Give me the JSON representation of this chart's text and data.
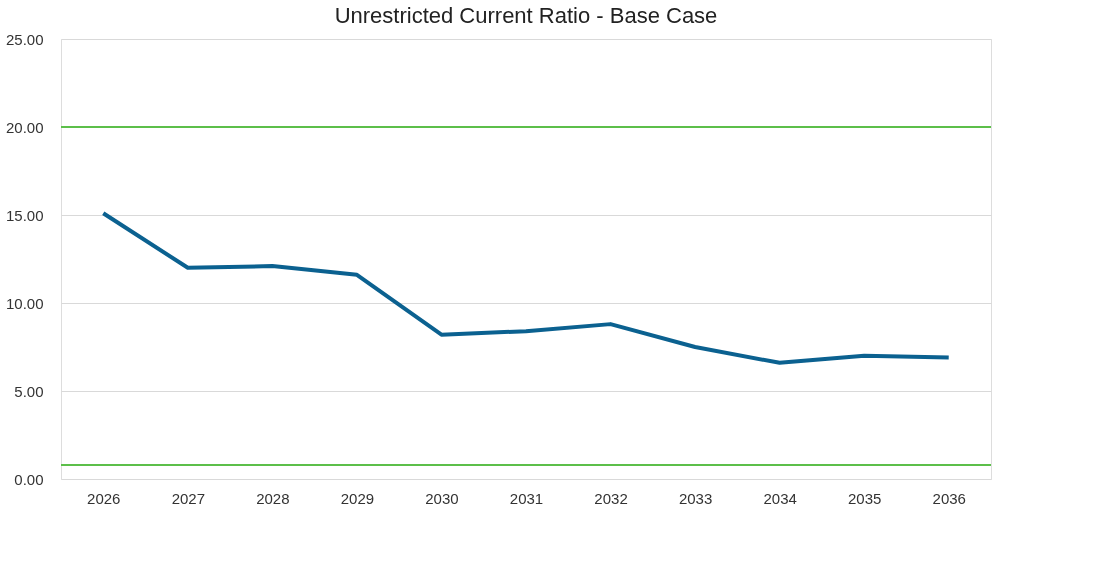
{
  "chart_data": {
    "type": "line",
    "title": "Unrestricted Current Ratio - Base Case",
    "categories": [
      "2026",
      "2027",
      "2028",
      "2029",
      "2030",
      "2031",
      "2032",
      "2033",
      "2034",
      "2035",
      "2036"
    ],
    "series": [
      {
        "color": "#0b6190",
        "values": [
          15.1,
          12.0,
          12.1,
          11.6,
          8.2,
          8.4,
          8.8,
          7.5,
          6.6,
          7.0,
          6.9
        ]
      }
    ],
    "ylim": [
      0,
      25
    ],
    "yticks": [
      {
        "value": 0,
        "label": "0.00"
      },
      {
        "value": 5,
        "label": "5.00"
      },
      {
        "value": 10,
        "label": "10.00"
      },
      {
        "value": 15,
        "label": "15.00"
      },
      {
        "value": 20,
        "label": "20.00"
      },
      {
        "value": 25,
        "label": "25.00"
      }
    ],
    "ref_lines": [
      {
        "axis": "y",
        "value": 20,
        "color": "#5cbf4a"
      },
      {
        "axis": "y",
        "value": 0.8,
        "color": "#5cbf4a"
      }
    ],
    "grid": "y",
    "marker": "none",
    "line_style": "solid"
  }
}
